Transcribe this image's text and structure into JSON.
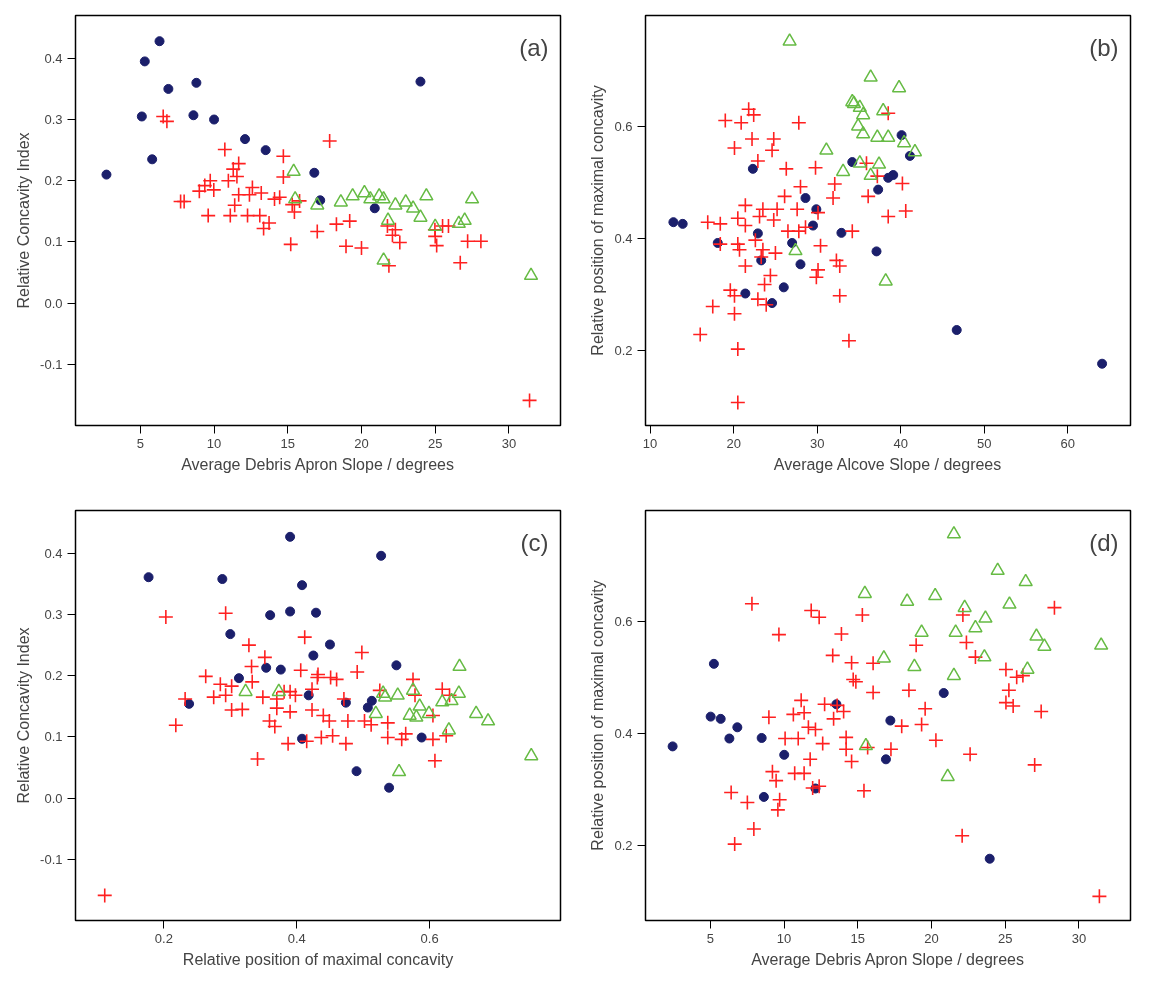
{
  "chart_data": [
    {
      "type": "scatter",
      "xlabel": "Average Debris Apron Slope / degrees",
      "ylabel": "Relative Concavity Index",
      "annotations": [
        "(a)"
      ],
      "xlim": [
        0.6,
        33.5
      ],
      "ylim": [
        -0.2,
        0.47
      ],
      "xticks": [
        5,
        10,
        15,
        20,
        25,
        30
      ],
      "yticks": [
        -0.1,
        {
          "value": 0,
          "label": "0.0"
        },
        0.1,
        0.2,
        0.3,
        0.4
      ],
      "series": [
        {
          "color": "#1b1f6b",
          "marker": "circle",
          "x": [
            2.7,
            5.1,
            5.3,
            5.8,
            6.3,
            6.9,
            8.6,
            8.8,
            10.0,
            12.1,
            13.5,
            16.8,
            17.2,
            20.9,
            24.0
          ],
          "values": [
            0.21,
            0.305,
            0.395,
            0.235,
            0.428,
            0.35,
            0.307,
            0.36,
            0.3,
            0.268,
            0.25,
            0.213,
            0.168,
            0.155,
            0.362
          ]
        },
        {
          "color": "#ff2020",
          "marker": "cross",
          "x": [
            6.55,
            6.8,
            7.73,
            7.97,
            9.0,
            9.37,
            9.74,
            9.98,
            9.6,
            10.73,
            10.97,
            11.1,
            11.3,
            11.67,
            11.55,
            11.67,
            11.4,
            12.27,
            12.4,
            12.6,
            13.2,
            13.1,
            13.73,
            13.36,
            14.1,
            14.45,
            14.7,
            14.7,
            15.3,
            15.45,
            15.2,
            15.8,
            17.0,
            17.84,
            18.3,
            19.2,
            18.95,
            20.0,
            21.76,
            22.3,
            22.1,
            22.6,
            21.86,
            24.98,
            25.0,
            25.1,
            25.5,
            25.9,
            27.2,
            28.1,
            26.7,
            31.4
          ],
          "values": [
            0.305,
            0.297,
            0.166,
            0.166,
            0.183,
            0.192,
            0.2,
            0.185,
            0.143,
            0.251,
            0.2,
            0.143,
            0.219,
            0.228,
            0.207,
            0.177,
            0.16,
            0.143,
            0.177,
            0.189,
            0.18,
            0.143,
            0.131,
            0.122,
            0.17,
            0.173,
            0.24,
            0.206,
            0.161,
            0.149,
            0.096,
            0.167,
            0.117,
            0.265,
            0.129,
            0.134,
            0.093,
            0.09,
            0.126,
            0.12,
            0.111,
            0.099,
            0.061,
            0.12,
            0.109,
            0.094,
            0.126,
            0.126,
            0.101,
            0.101,
            0.066,
            -0.159
          ]
        },
        {
          "color": "#66bb44",
          "marker": "triangle",
          "x": [
            15.4,
            15.5,
            17.0,
            18.6,
            19.4,
            20.2,
            20.6,
            21.2,
            21.5,
            22.3,
            21.8,
            23.0,
            23.5,
            24.0,
            24.4,
            25.0,
            26.6,
            27.0,
            27.5,
            31.5,
            21.5
          ],
          "values": [
            0.215,
            0.17,
            0.16,
            0.165,
            0.175,
            0.18,
            0.17,
            0.175,
            0.17,
            0.16,
            0.135,
            0.165,
            0.155,
            0.14,
            0.175,
            0.125,
            0.13,
            0.135,
            0.17,
            0.045,
            0.07
          ]
        }
      ]
    },
    {
      "type": "scatter",
      "xlabel": "Average Alcove Slope / degrees",
      "ylabel": "Relative position of maximal concavity",
      "annotations": [
        "(b)"
      ],
      "xlim": [
        9.45,
        67.5
      ],
      "ylim": [
        0.067,
        0.797
      ],
      "xticks": [
        10,
        20,
        30,
        40,
        50,
        60
      ],
      "yticks": [
        0.2,
        0.4,
        0.6
      ],
      "series": [
        {
          "color": "#1b1f6b",
          "marker": "circle",
          "x": [
            12.79,
            13.9,
            18.1,
            22.3,
            22.9,
            23.3,
            21.4,
            24.6,
            26.0,
            27.0,
            28.0,
            28.6,
            29.9,
            29.5,
            32.9,
            34.2,
            37.3,
            37.1,
            39.1,
            38.5,
            40.1,
            41.1,
            46.7,
            64.1
          ],
          "values": [
            0.429,
            0.426,
            0.392,
            0.524,
            0.409,
            0.361,
            0.302,
            0.285,
            0.313,
            0.392,
            0.354,
            0.472,
            0.452,
            0.423,
            0.41,
            0.536,
            0.487,
            0.377,
            0.513,
            0.508,
            0.584,
            0.547,
            0.237,
            0.177
          ]
        },
        {
          "color": "#ff2020",
          "marker": "cross",
          "x": [
            19.0,
            20.9,
            21.8,
            22.4,
            27.8,
            22.2,
            24.8,
            20.1,
            24.6,
            22.9,
            26.3,
            29.8,
            32.1,
            28.0,
            26.1,
            31.9,
            21.4,
            23.5,
            25.2,
            27.6,
            30.1,
            20.5,
            23.1,
            24.8,
            18.4,
            16.9,
            21.4,
            26.5,
            27.8,
            28.6,
            34.2,
            35.9,
            37.2,
            40.2,
            36.1,
            38.5,
            40.6,
            38.5,
            18.4,
            20.5,
            20.7,
            22.6,
            23.5,
            25.0,
            30.4,
            23.3,
            21.4,
            24.4,
            23.7,
            30.1,
            29.9,
            32.3,
            32.7,
            19.6,
            20.1,
            22.9,
            23.9,
            32.7,
            17.5,
            20.1,
            16.0,
            20.5,
            33.8,
            20.5
          ],
          "values": [
            0.61,
            0.606,
            0.63,
            0.62,
            0.606,
            0.577,
            0.577,
            0.561,
            0.557,
            0.538,
            0.524,
            0.526,
            0.497,
            0.492,
            0.475,
            0.472,
            0.459,
            0.452,
            0.452,
            0.452,
            0.446,
            0.436,
            0.439,
            0.433,
            0.426,
            0.429,
            0.423,
            0.413,
            0.413,
            0.42,
            0.413,
            0.534,
            0.511,
            0.498,
            0.475,
            0.439,
            0.449,
            0.623,
            0.39,
            0.39,
            0.38,
            0.397,
            0.38,
            0.374,
            0.387,
            0.367,
            0.351,
            0.334,
            0.318,
            0.344,
            0.331,
            0.361,
            0.351,
            0.308,
            0.298,
            0.292,
            0.282,
            0.298,
            0.279,
            0.266,
            0.229,
            0.203,
            0.218,
            0.108
          ]
        },
        {
          "color": "#66bb44",
          "marker": "triangle",
          "x": [
            26.7,
            36.4,
            39.8,
            34.2,
            34.4,
            35.1,
            35.5,
            37.9,
            34.9,
            35.5,
            37.2,
            38.5,
            40.4,
            41.7,
            31.1,
            33.1,
            35.1,
            37.4,
            36.4,
            27.4,
            38.2
          ],
          "values": [
            0.751,
            0.687,
            0.668,
            0.643,
            0.64,
            0.633,
            0.62,
            0.627,
            0.6,
            0.586,
            0.58,
            0.58,
            0.57,
            0.554,
            0.557,
            0.519,
            0.534,
            0.532,
            0.512,
            0.378,
            0.324
          ]
        }
      ]
    },
    {
      "type": "scatter",
      "xlabel": "Relative position of maximal concavity",
      "ylabel": "Relative Concavity Index",
      "annotations": [
        "(c)"
      ],
      "xlim": [
        0.067,
        0.797
      ],
      "ylim": [
        -0.2,
        0.47
      ],
      "xticks": [
        0.2,
        0.4,
        0.6
      ],
      "yticks": [
        -0.1,
        {
          "value": 0,
          "label": "0.0"
        },
        0.1,
        0.2,
        0.3,
        0.4
      ],
      "series": [
        {
          "color": "#1b1f6b",
          "marker": "circle",
          "x": [
            0.177,
            0.288,
            0.39,
            0.527,
            0.408,
            0.36,
            0.39,
            0.429,
            0.3,
            0.45,
            0.425,
            0.313,
            0.354,
            0.376,
            0.55,
            0.238,
            0.418,
            0.474,
            0.513,
            0.507,
            0.408,
            0.588,
            0.49,
            0.539
          ],
          "values": [
            0.361,
            0.358,
            0.427,
            0.396,
            0.348,
            0.299,
            0.305,
            0.303,
            0.268,
            0.251,
            0.233,
            0.196,
            0.213,
            0.21,
            0.217,
            0.154,
            0.168,
            0.156,
            0.159,
            0.148,
            0.097,
            0.099,
            0.044,
            0.017
          ]
        },
        {
          "color": "#ff2020",
          "marker": "cross",
          "x": [
            0.203,
            0.293,
            0.328,
            0.352,
            0.412,
            0.498,
            0.491,
            0.263,
            0.285,
            0.302,
            0.332,
            0.333,
            0.406,
            0.432,
            0.451,
            0.46,
            0.575,
            0.619,
            0.232,
            0.275,
            0.293,
            0.349,
            0.37,
            0.381,
            0.39,
            0.398,
            0.423,
            0.431,
            0.471,
            0.525,
            0.578,
            0.63,
            0.302,
            0.318,
            0.37,
            0.39,
            0.423,
            0.44,
            0.449,
            0.477,
            0.502,
            0.512,
            0.537,
            0.605,
            0.359,
            0.367,
            0.437,
            0.454,
            0.387,
            0.415,
            0.474,
            0.537,
            0.558,
            0.564,
            0.605,
            0.625,
            0.218,
            0.341,
            0.608,
            0.111
          ],
          "values": [
            0.296,
            0.302,
            0.25,
            0.23,
            0.263,
            0.238,
            0.206,
            0.199,
            0.186,
            0.183,
            0.215,
            0.19,
            0.209,
            0.202,
            0.197,
            0.194,
            0.194,
            0.178,
            0.162,
            0.165,
            0.168,
            0.165,
            0.162,
            0.174,
            0.174,
            0.168,
            0.178,
            0.197,
            0.162,
            0.176,
            0.168,
            0.168,
            0.144,
            0.145,
            0.147,
            0.141,
            0.144,
            0.135,
            0.126,
            0.126,
            0.126,
            0.12,
            0.123,
            0.135,
            0.126,
            0.117,
            0.099,
            0.102,
            0.089,
            0.093,
            0.089,
            0.099,
            0.096,
            0.105,
            0.096,
            0.102,
            0.119,
            0.064,
            0.061,
            -0.159
          ]
        },
        {
          "color": "#66bb44",
          "marker": "triangle",
          "x": [
            0.645,
            0.323,
            0.373,
            0.53,
            0.533,
            0.552,
            0.575,
            0.644,
            0.633,
            0.619,
            0.585,
            0.57,
            0.58,
            0.599,
            0.67,
            0.688,
            0.519,
            0.629,
            0.554,
            0.753
          ],
          "values": [
            0.215,
            0.174,
            0.174,
            0.171,
            0.165,
            0.168,
            0.176,
            0.171,
            0.159,
            0.157,
            0.15,
            0.135,
            0.132,
            0.138,
            0.138,
            0.126,
            0.138,
            0.111,
            0.043,
            0.069
          ]
        }
      ]
    },
    {
      "type": "scatter",
      "xlabel": "Average Debris Apron Slope / degrees",
      "ylabel": "Relative position of maximal concavity",
      "annotations": [
        "(d)"
      ],
      "xlim": [
        0.6,
        33.5
      ],
      "ylim": [
        0.067,
        0.797
      ],
      "xticks": [
        5,
        10,
        15,
        20,
        25,
        30
      ],
      "yticks": [
        0.2,
        0.4,
        0.6
      ],
      "series": [
        {
          "color": "#1b1f6b",
          "marker": "circle",
          "x": [
            2.44,
            5.24,
            5.02,
            5.7,
            6.83,
            6.29,
            8.48,
            10.01,
            8.63,
            12.13,
            13.55,
            17.21,
            16.91,
            20.83,
            23.95
          ],
          "values": [
            0.377,
            0.524,
            0.43,
            0.426,
            0.411,
            0.391,
            0.392,
            0.362,
            0.287,
            0.302,
            0.452,
            0.423,
            0.354,
            0.472,
            0.177
          ]
        },
        {
          "color": "#ff2020",
          "marker": "cross",
          "x": [
            7.82,
            11.84,
            12.38,
            15.31,
            22.13,
            28.34,
            9.65,
            13.89,
            13.3,
            14.58,
            16.04,
            18.96,
            22.37,
            22.98,
            14.69,
            14.87,
            16.04,
            18.47,
            25.05,
            25.78,
            26.2,
            25.25,
            25.05,
            25.54,
            27.44,
            11.16,
            12.75,
            13.6,
            14.04,
            8.97,
            10.63,
            11.36,
            13.36,
            19.57,
            17.98,
            19.33,
            11.65,
            12.13,
            10.07,
            10.96,
            12.62,
            14.21,
            14.21,
            15.67,
            17.25,
            20.3,
            11.77,
            14.58,
            9.21,
            10.72,
            11.36,
            9.46,
            11.94,
            12.38,
            15.42,
            6.41,
            7.51,
            9.7,
            9.58,
            7.95,
            6.65,
            22.62,
            27.0,
            22.08,
            31.39
          ],
          "values": [
            0.631,
            0.619,
            0.607,
            0.611,
            0.611,
            0.624,
            0.576,
            0.577,
            0.539,
            0.526,
            0.525,
            0.557,
            0.562,
            0.536,
            0.496,
            0.492,
            0.473,
            0.477,
            0.514,
            0.5,
            0.503,
            0.477,
            0.455,
            0.449,
            0.439,
            0.459,
            0.452,
            0.45,
            0.439,
            0.429,
            0.434,
            0.437,
            0.426,
            0.444,
            0.413,
            0.416,
            0.411,
            0.407,
            0.391,
            0.391,
            0.382,
            0.393,
            0.372,
            0.375,
            0.372,
            0.388,
            0.354,
            0.35,
            0.332,
            0.329,
            0.329,
            0.316,
            0.303,
            0.306,
            0.298,
            0.295,
            0.277,
            0.282,
            0.264,
            0.23,
            0.203,
            0.363,
            0.344,
            0.218,
            0.11
          ]
        },
        {
          "color": "#66bb44",
          "marker": "triangle",
          "x": [
            21.52,
            24.49,
            26.39,
            15.48,
            18.35,
            20.25,
            22.25,
            25.29,
            23.66,
            19.33,
            21.64,
            22.98,
            27.12,
            27.66,
            31.51,
            16.77,
            18.84,
            23.59,
            21.52,
            26.51,
            15.55,
            21.1
          ],
          "values": [
            0.755,
            0.69,
            0.67,
            0.649,
            0.635,
            0.645,
            0.624,
            0.63,
            0.605,
            0.58,
            0.58,
            0.588,
            0.573,
            0.555,
            0.557,
            0.534,
            0.519,
            0.536,
            0.503,
            0.514,
            0.378,
            0.323
          ]
        }
      ]
    }
  ]
}
